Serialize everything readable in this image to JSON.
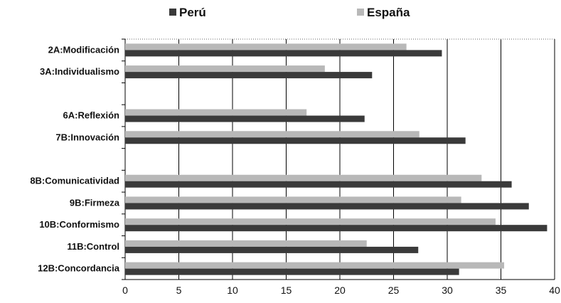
{
  "chart_data": {
    "type": "bar",
    "orientation": "horizontal",
    "title": "",
    "xlabel": "",
    "ylabel": "",
    "xlim": [
      0,
      40
    ],
    "xticks": [
      0,
      5,
      10,
      15,
      20,
      25,
      30,
      35,
      40
    ],
    "grid": "vertical",
    "legend_position": "top",
    "categories": [
      "2A:Modificación",
      "3A:Individualismo",
      "",
      "6A:Reflexión",
      "7B:Innovación",
      "",
      "8B:Comunicatividad",
      "9B:Firmeza",
      "10B:Conformismo",
      "11B:Control",
      "12B:Concordancia"
    ],
    "series": [
      {
        "name": "Perú",
        "color": "#3a3a3a",
        "values": [
          29.5,
          23,
          null,
          22.3,
          31.7,
          null,
          36,
          37.6,
          39.3,
          27.3,
          31.1
        ]
      },
      {
        "name": "España",
        "color": "#b8b8b8",
        "values": [
          26.2,
          18.6,
          null,
          16.9,
          27.4,
          null,
          33.2,
          31.3,
          34.5,
          22.5,
          35.3
        ]
      }
    ]
  }
}
